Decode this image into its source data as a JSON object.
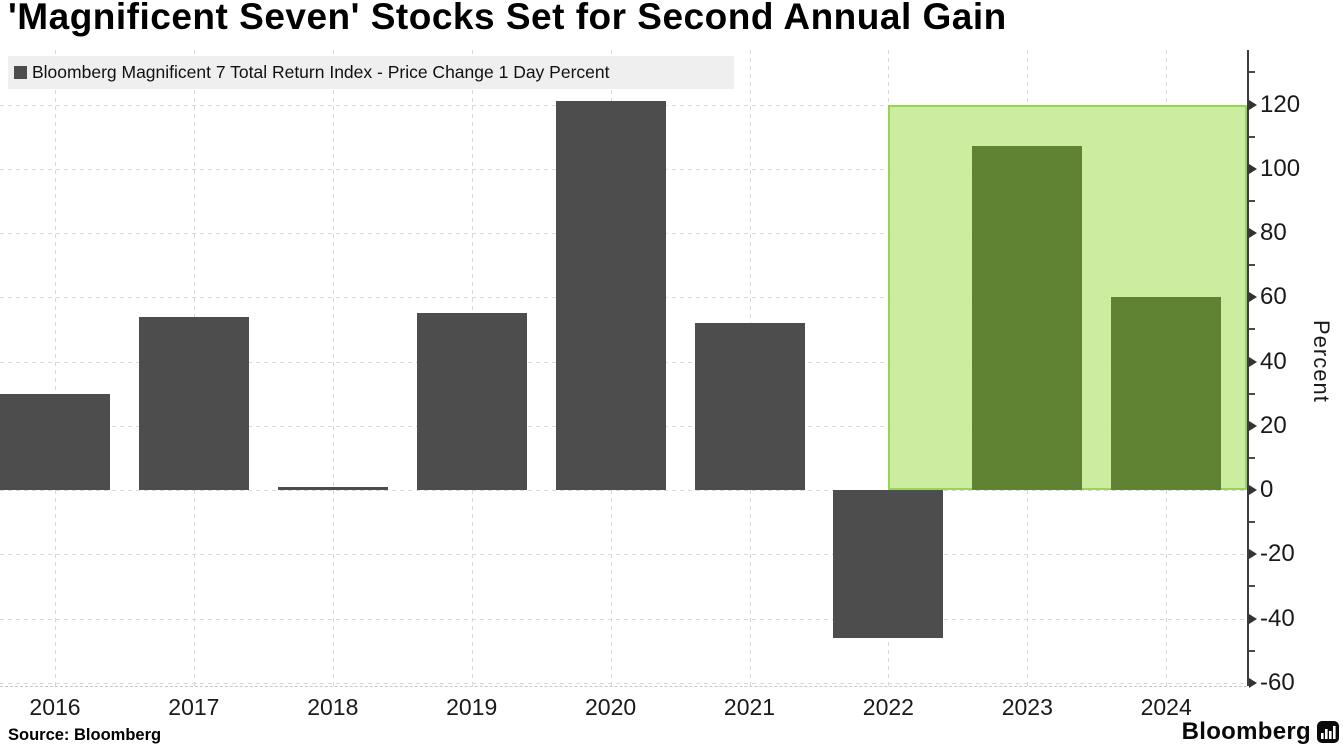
{
  "title": "'Magnificent Seven' Stocks Set for Second Annual Gain",
  "legend": {
    "label": "Bloomberg Magnificent 7 Total Return Index - Price Change 1 Day Percent",
    "marker_color": "#4d4d4d",
    "position": "top-left"
  },
  "chart_data": {
    "type": "bar",
    "categories": [
      "2016",
      "2017",
      "2018",
      "2019",
      "2020",
      "2021",
      "2022",
      "2023",
      "2024"
    ],
    "values": [
      30,
      54,
      1,
      55,
      121,
      52,
      -46,
      107,
      60
    ],
    "series_name": "Bloomberg Magnificent 7 Total Return Index - Price Change 1 Day Percent",
    "title": "'Magnificent Seven' Stocks Set for Second Annual Gain",
    "xlabel": "",
    "ylabel": "Percent",
    "ylim": [
      -61,
      137
    ],
    "yticks_major": [
      -60,
      -40,
      -20,
      0,
      20,
      40,
      60,
      80,
      100,
      120
    ],
    "ytick_minor_step": 10,
    "ytick_minor_max": 130,
    "grid": "dashed horizontal at majors + dashed vertical at category centers",
    "bar_color": "#4d4d4d",
    "highlighted_bar_color": "#5f8233",
    "highlighted_categories": [
      "2023",
      "2024"
    ],
    "highlight_region": {
      "from_category_center": "2022",
      "to": "right-axis",
      "value_range": [
        0,
        120
      ],
      "fill": "#c8eb98",
      "fill_opacity": 0.92,
      "border_color": "#8ed14d"
    },
    "axis_side": "right"
  },
  "footer": {
    "source": "Source: Bloomberg",
    "brand": "Bloomberg"
  }
}
